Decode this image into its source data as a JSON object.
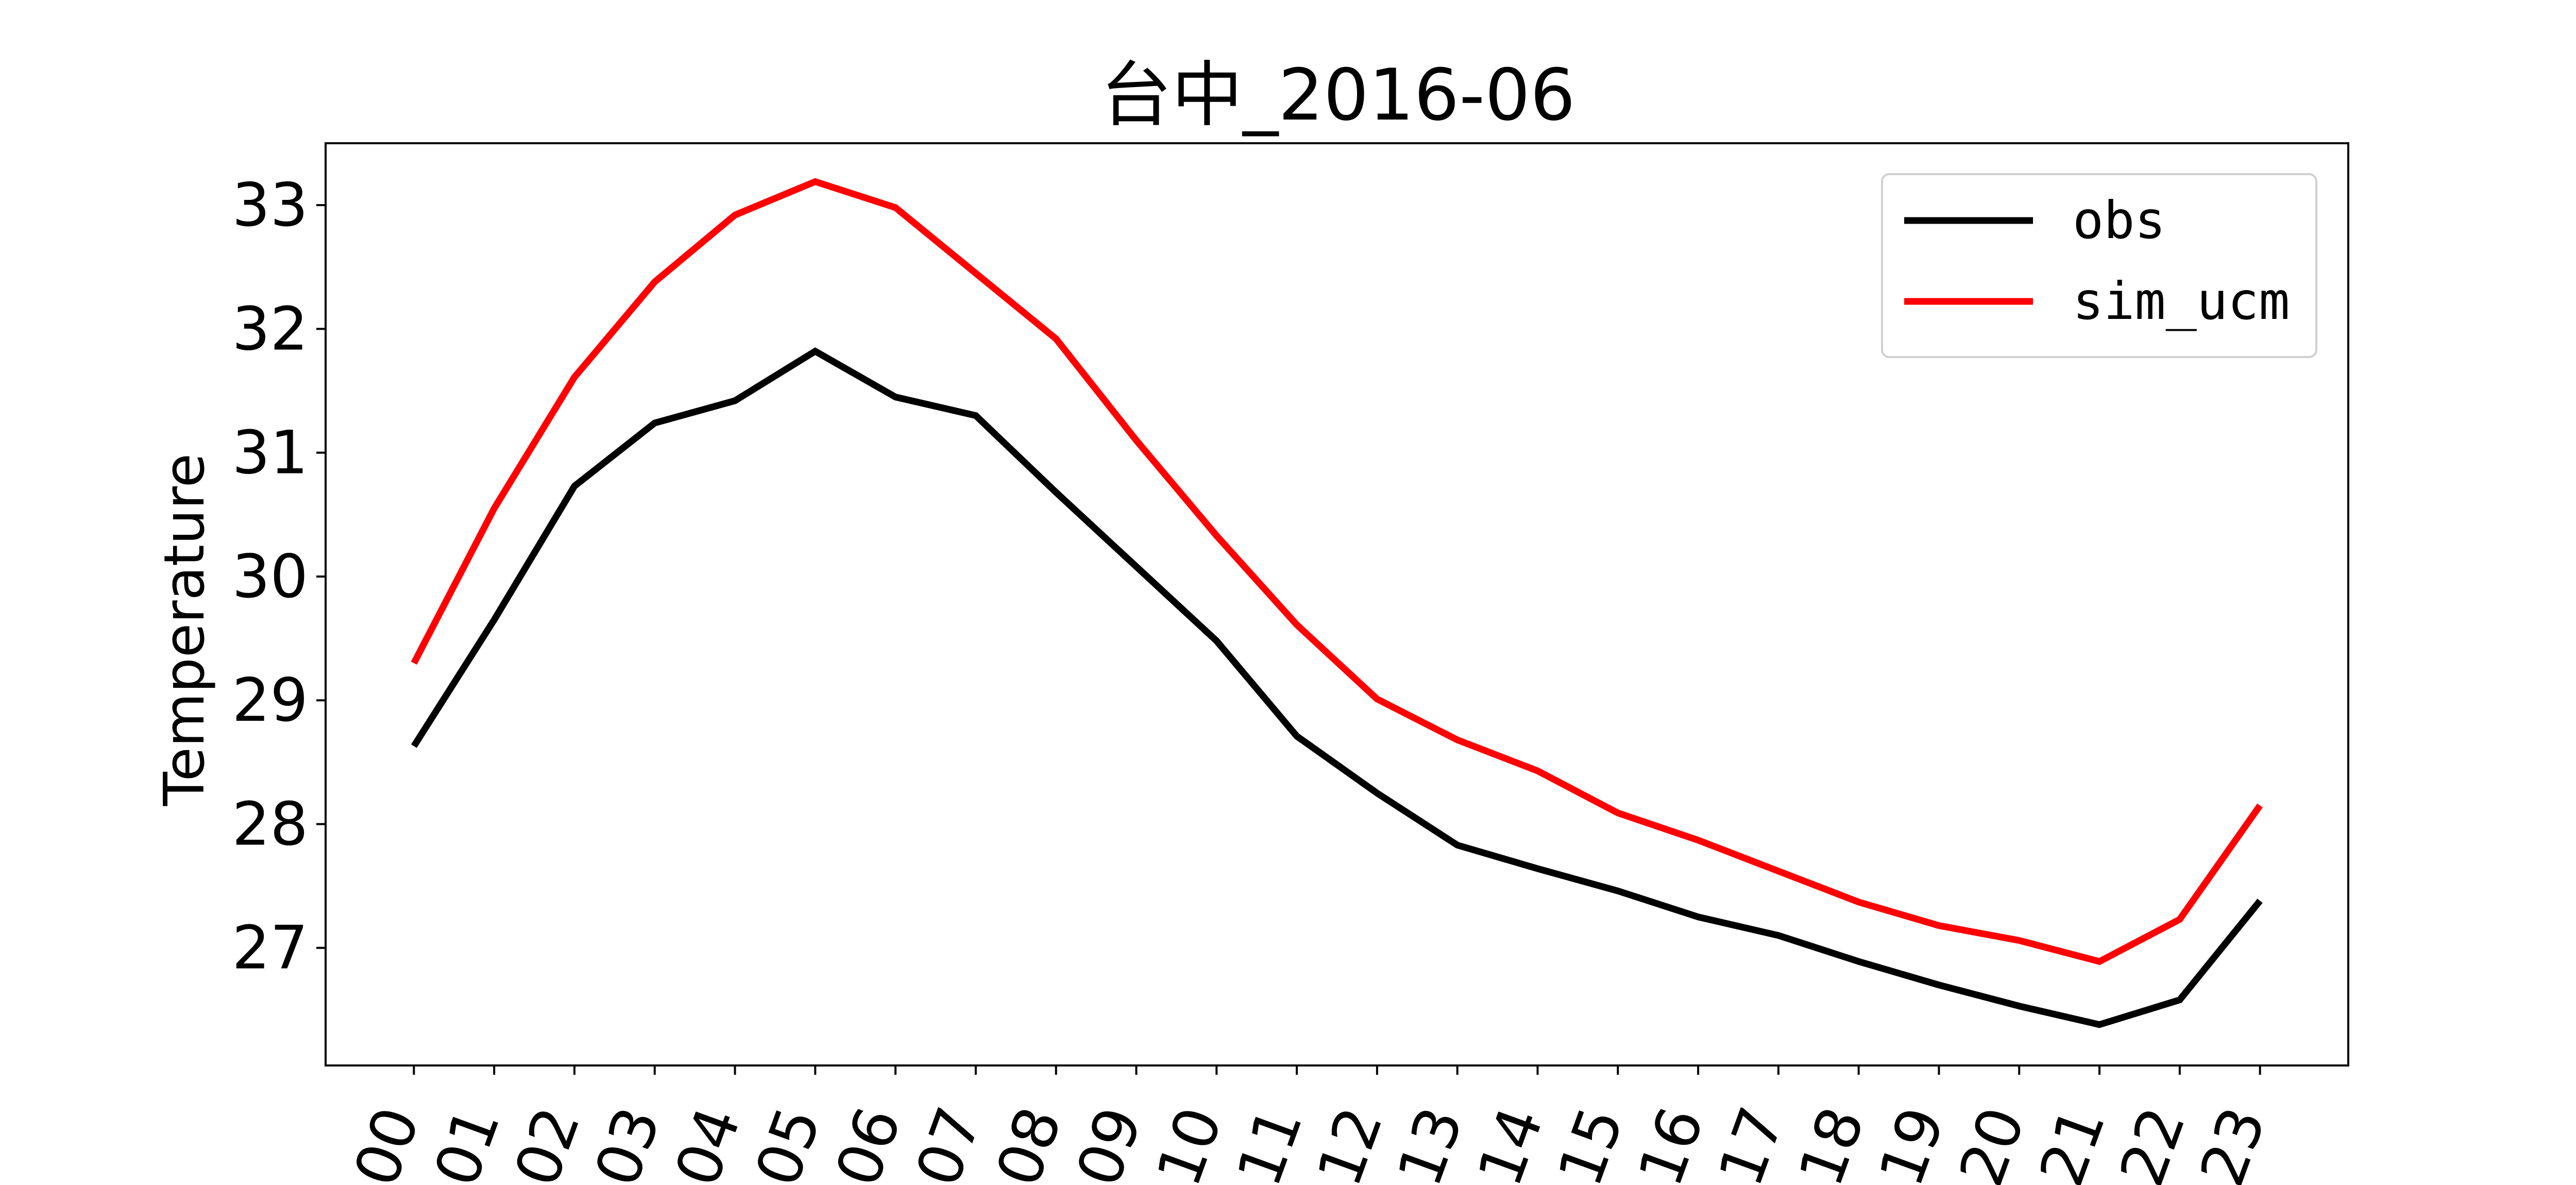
{
  "chart_data": {
    "type": "line",
    "title": "台中_2016-06",
    "xlabel": "",
    "ylabel": "Temperature",
    "categories": [
      "00",
      "01",
      "02",
      "03",
      "04",
      "05",
      "06",
      "07",
      "08",
      "09",
      "10",
      "11",
      "12",
      "13",
      "14",
      "15",
      "16",
      "17",
      "18",
      "19",
      "20",
      "21",
      "22",
      "23"
    ],
    "xlim": [
      -1.1,
      24.1
    ],
    "ylim": [
      26.05,
      33.5
    ],
    "yticks": [
      27,
      28,
      29,
      30,
      31,
      32,
      33
    ],
    "ytick_labels": [
      "27",
      "28",
      "29",
      "30",
      "31",
      "32",
      "33"
    ],
    "grid": false,
    "legend_position": "top-right",
    "series": [
      {
        "name": "obs",
        "color": "#000000",
        "values": [
          28.63,
          29.65,
          30.73,
          31.24,
          31.42,
          31.82,
          31.45,
          31.3,
          30.68,
          30.08,
          29.48,
          28.71,
          28.25,
          27.83,
          27.64,
          27.46,
          27.25,
          27.1,
          26.89,
          26.7,
          26.53,
          26.38,
          26.58,
          27.38
        ]
      },
      {
        "name": "sim_ucm",
        "color": "#ff0000",
        "values": [
          29.3,
          30.55,
          31.61,
          32.38,
          32.92,
          33.19,
          32.98,
          32.45,
          31.92,
          31.1,
          30.33,
          29.61,
          29.01,
          28.68,
          28.43,
          28.09,
          27.87,
          27.62,
          27.37,
          27.18,
          27.06,
          26.89,
          27.23,
          28.15
        ]
      }
    ]
  }
}
